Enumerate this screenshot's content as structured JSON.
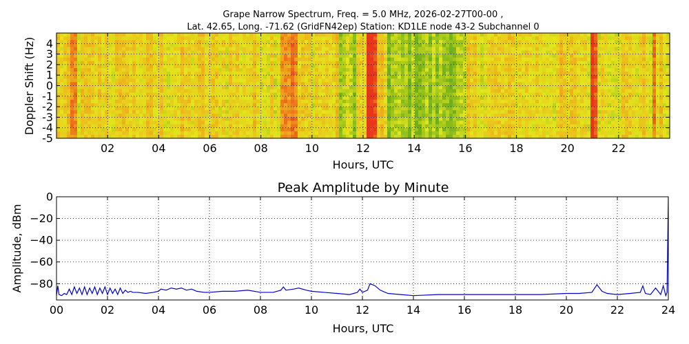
{
  "title_line1": "Grape Narrow Spectrum, Freq. = 5.0 MHz, 2026-02-27T00-00 ,",
  "title_line2": "Lat.  42.65, Long. -71.62 (GridFN42ep) Station: KD1LE node 43-2 Subchannel 0",
  "colors": {
    "line": "#0000cc",
    "grid": "#000000",
    "spec_low": "#6fae1a",
    "spec_mid": "#e4e61c",
    "spec_high": "#f0a21c",
    "spec_peak": "#e8361a"
  },
  "chart_data": [
    {
      "type": "heatmap",
      "title": "Grape Narrow Spectrum, Freq. = 5.0 MHz, 2026-02-27T00-00 ,",
      "xlabel": "Hours, UTC",
      "ylabel": "Doppler Shift (Hz)",
      "xlim": [
        0,
        24
      ],
      "ylim": [
        -5,
        5
      ],
      "xticks": [
        2,
        4,
        6,
        8,
        10,
        12,
        14,
        16,
        18,
        20,
        22
      ],
      "xtick_labels": [
        "02",
        "04",
        "06",
        "08",
        "10",
        "12",
        "14",
        "16",
        "18",
        "20",
        "22"
      ],
      "yticks": [
        4,
        3,
        2,
        1,
        0,
        -1,
        -2,
        -3,
        -4,
        -5
      ],
      "ytick_labels": [
        "4",
        "3",
        "2",
        "1",
        "0",
        "-1",
        "-2",
        "-3",
        "-4",
        "-5"
      ],
      "grid": true,
      "hot_bands": [
        {
          "start": 8.8,
          "end": 9.5,
          "level": 0.75
        },
        {
          "start": 12.15,
          "end": 12.6,
          "level": 1.0
        },
        {
          "start": 20.95,
          "end": 21.2,
          "level": 0.9
        },
        {
          "start": 23.3,
          "end": 23.5,
          "level": 0.7
        },
        {
          "start": 0.6,
          "end": 0.75,
          "level": 0.7
        },
        {
          "start": 2.7,
          "end": 2.85,
          "level": 0.6
        }
      ],
      "quiet_bands": [
        {
          "start": 11.1,
          "end": 11.7,
          "level": 0.2
        },
        {
          "start": 12.9,
          "end": 16.0,
          "level": 0.15
        }
      ]
    },
    {
      "type": "line",
      "title": "Peak Amplitude by Minute",
      "xlabel": "Hours, UTC",
      "ylabel": "Amplitude, dBm",
      "xlim": [
        0,
        24
      ],
      "ylim": [
        -95,
        0
      ],
      "xticks": [
        0,
        2,
        4,
        6,
        8,
        10,
        12,
        14,
        16,
        18,
        20,
        22,
        24
      ],
      "xtick_labels": [
        "00",
        "02",
        "04",
        "06",
        "08",
        "10",
        "12",
        "14",
        "16",
        "18",
        "20",
        "22",
        "24"
      ],
      "yticks": [
        0,
        -20,
        -40,
        -60,
        -80
      ],
      "ytick_labels": [
        "0",
        "−20",
        "−40",
        "−60",
        "−80"
      ],
      "grid": true,
      "series": [
        {
          "x": [
            0,
            0.05,
            0.1,
            0.2,
            0.3,
            0.4,
            0.5,
            0.6,
            0.7,
            0.8,
            0.9,
            1.0,
            1.1,
            1.2,
            1.3,
            1.4,
            1.5,
            1.6,
            1.7,
            1.8,
            1.9,
            2.0,
            2.1,
            2.2,
            2.3,
            2.4,
            2.5,
            2.6,
            2.7,
            2.8,
            2.9,
            3.0,
            3.2,
            3.5,
            3.8,
            4.0,
            4.1,
            4.3,
            4.5,
            4.7,
            4.9,
            5.1,
            5.3,
            5.5,
            5.8,
            6.0,
            6.5,
            7.0,
            7.5,
            8.0,
            8.5,
            8.8,
            8.9,
            9.0,
            9.3,
            9.5,
            9.8,
            10.0,
            10.5,
            11.0,
            11.5,
            11.8,
            11.9,
            12.0,
            12.2,
            12.3,
            12.5,
            12.7,
            13.0,
            13.5,
            14.0,
            15.0,
            16.0,
            17.0,
            18.0,
            19.0,
            20.0,
            20.5,
            21.0,
            21.2,
            21.4,
            21.6,
            22.0,
            22.5,
            22.9,
            23.0,
            23.1,
            23.3,
            23.5,
            23.7,
            23.8,
            23.9,
            23.95,
            24.0
          ],
          "y": [
            -91,
            -82,
            -90,
            -91,
            -89,
            -90,
            -85,
            -90,
            -83,
            -89,
            -84,
            -90,
            -83,
            -90,
            -84,
            -89,
            -83,
            -90,
            -84,
            -89,
            -83,
            -90,
            -84,
            -89,
            -85,
            -90,
            -84,
            -89,
            -86,
            -88,
            -87,
            -88,
            -88,
            -89,
            -88,
            -87,
            -85,
            -86,
            -84,
            -85,
            -84,
            -86,
            -85,
            -87,
            -88,
            -88,
            -87,
            -87,
            -86,
            -88,
            -88,
            -86,
            -83,
            -86,
            -85,
            -84,
            -86,
            -87,
            -88,
            -89,
            -90,
            -88,
            -85,
            -88,
            -86,
            -80,
            -82,
            -86,
            -89,
            -90,
            -91,
            -90,
            -90,
            -90,
            -90,
            -90,
            -89,
            -89,
            -88,
            -81,
            -87,
            -89,
            -90,
            -89,
            -88,
            -82,
            -89,
            -90,
            -84,
            -90,
            -82,
            -91,
            -88,
            0
          ]
        }
      ]
    }
  ]
}
